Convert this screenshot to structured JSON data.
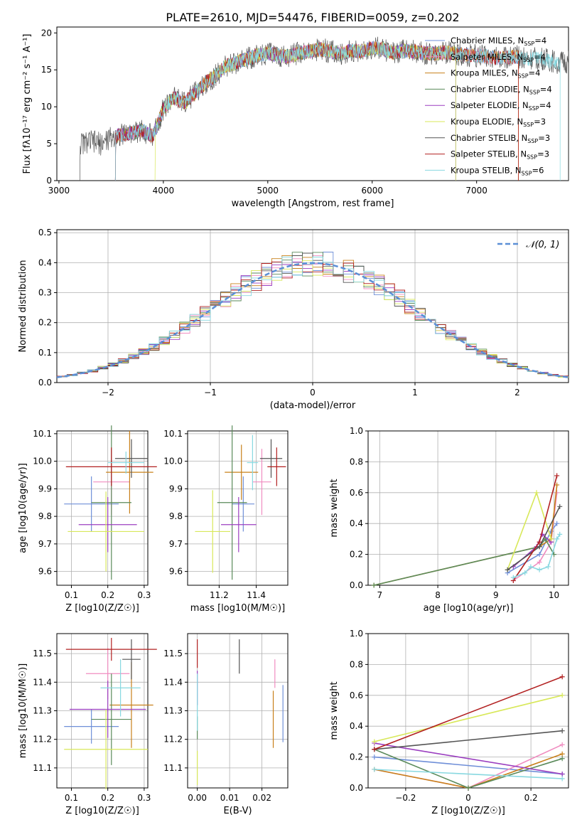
{
  "title": "PLATE=2610, MJD=54476, FIBERID=0059, z=0.202",
  "models": [
    {
      "label": "Chabrier MILES, N$_{SSP}$=4",
      "color": "#6f8fd8"
    },
    {
      "label": "Salpeter MILES, N$_{SSP}$=4",
      "color": "#f08cc0"
    },
    {
      "label": "Kroupa MILES, N$_{SSP}$=4",
      "color": "#c8801a"
    },
    {
      "label": "Chabrier ELODIE, N$_{SSP}$=4",
      "color": "#5a8a5a"
    },
    {
      "label": "Salpeter ELODIE, N$_{SSP}$=4",
      "color": "#9b3fc0"
    },
    {
      "label": "Kroupa ELODIE, N$_{SSP}$=3",
      "color": "#d8e85a"
    },
    {
      "label": "Chabrier STELIB, N$_{SSP}$=3",
      "color": "#555555"
    },
    {
      "label": "Salpeter STELIB, N$_{SSP}$=3",
      "color": "#b22020"
    },
    {
      "label": "Kroupa STELIB, N$_{SSP}$=6",
      "color": "#88d8e0"
    }
  ],
  "legend_labels": [
    "Chabrier MILES, N",
    "Salpeter MILES, N",
    "Kroupa MILES, N",
    "Chabrier ELODIE, N",
    "Salpeter ELODIE, N",
    "Kroupa ELODIE, N",
    "Chabrier STELIB, N",
    "Salpeter STELIB, N",
    "Kroupa STELIB, N"
  ],
  "legend_sub": "SSP",
  "legend_counts": [
    "=4",
    "=4",
    "=4",
    "=4",
    "=4",
    "=3",
    "=3",
    "=3",
    "=6"
  ],
  "chart_data": [
    {
      "type": "line",
      "id": "spectrum",
      "xlabel": "wavelength [Angstrom, rest frame]",
      "ylabel": "Flux [fλ10⁻¹⁷ erg cm⁻² s⁻¹ A⁻¹]",
      "xlim": [
        2980,
        7880
      ],
      "ylim": [
        0,
        20.8
      ],
      "xticks": [
        3000,
        4000,
        5000,
        6000,
        7000
      ],
      "yticks": [
        0,
        5,
        10,
        15,
        20
      ],
      "continuum_x": [
        3200,
        3300,
        3400,
        3500,
        3600,
        3700,
        3800,
        3900,
        4000,
        4100,
        4200,
        4300,
        4400,
        4500,
        4600,
        4700,
        4800,
        4900,
        5000,
        5100,
        5200,
        5300,
        5400,
        5500,
        5600,
        5700,
        5800,
        5900,
        6000,
        6100,
        6200,
        6300,
        6400,
        6500,
        6600,
        6700,
        6800,
        6900,
        7000,
        7100,
        7200,
        7300,
        7400,
        7500,
        7600,
        7700,
        7800
      ],
      "continuum_y": [
        5.0,
        5.3,
        5.0,
        5.8,
        6.2,
        6.5,
        6.8,
        6.0,
        9.8,
        11.2,
        10.5,
        11.8,
        13.2,
        14.2,
        15.5,
        16.0,
        16.5,
        17.0,
        17.2,
        17.0,
        16.8,
        17.3,
        17.5,
        17.8,
        17.5,
        17.2,
        17.6,
        17.5,
        18.0,
        17.8,
        17.3,
        17.6,
        17.5,
        17.3,
        17.2,
        17.4,
        17.2,
        17.0,
        16.9,
        16.8,
        16.6,
        16.7,
        16.8,
        16.5,
        16.6,
        16.2,
        16.0
      ],
      "ranges": [
        [
          3540,
          7400
        ],
        [
          3540,
          7400
        ],
        [
          3540,
          7400
        ],
        [
          3540,
          6800
        ],
        [
          3540,
          6800
        ],
        [
          3920,
          6800
        ],
        [
          3200,
          7880
        ],
        [
          3540,
          7400
        ],
        [
          3540,
          7800
        ]
      ]
    },
    {
      "type": "histogram",
      "id": "residuals",
      "xlabel": "(data-model)/error",
      "ylabel": "Normed distribution",
      "xlim": [
        -2.5,
        2.5
      ],
      "ylim": [
        0,
        0.51
      ],
      "xticks": [
        -2,
        -1,
        0,
        1,
        2
      ],
      "yticks": [
        0.0,
        0.1,
        0.2,
        0.3,
        0.4,
        0.5
      ],
      "bin_width": 0.1,
      "reference": {
        "name": "𝒩(0, 1)",
        "color": "#5b8fd6"
      }
    },
    {
      "type": "scatter",
      "id": "age_vs_Z",
      "xlabel": "Z [log10(Z/Z☉)]",
      "ylabel": "age [log10(age/yr)]",
      "xlim": [
        0.06,
        0.31
      ],
      "ylim": [
        9.55,
        10.11
      ],
      "xticks": [
        0.1,
        0.2,
        0.3
      ],
      "yticks": [
        9.6,
        9.7,
        9.8,
        9.9,
        10.0,
        10.1
      ],
      "points": [
        {
          "x": 0.155,
          "xerr": 0.075,
          "y": 9.845,
          "yerr": 0.1
        },
        {
          "x": 0.21,
          "xerr": 0.05,
          "y": 9.925,
          "yerr": 0.12
        },
        {
          "x": 0.26,
          "xerr": 0.065,
          "y": 9.96,
          "yerr": 0.15
        },
        {
          "x": 0.21,
          "xerr": 0.055,
          "y": 9.85,
          "yerr": 0.28
        },
        {
          "x": 0.2,
          "xerr": 0.08,
          "y": 9.77,
          "yerr": 0.1
        },
        {
          "x": 0.195,
          "xerr": 0.105,
          "y": 9.745,
          "yerr": 0.145
        },
        {
          "x": 0.265,
          "xerr": 0.045,
          "y": 10.01,
          "yerr": 0.07
        },
        {
          "x": 0.21,
          "xerr": 0.125,
          "y": 9.98,
          "yerr": 0.07
        },
        {
          "x": 0.25,
          "xerr": 0.05,
          "y": 9.995,
          "yerr": 0.04
        }
      ]
    },
    {
      "type": "scatter",
      "id": "age_vs_mass",
      "xlabel": "mass [log10(M/M☉)]",
      "ylabel": "",
      "xlim": [
        11.03,
        11.57
      ],
      "ylim": [
        9.55,
        10.11
      ],
      "xticks": [
        11.2,
        11.4
      ],
      "yticks": [
        9.6,
        9.7,
        9.8,
        9.9,
        10.0,
        10.1
      ],
      "points": [
        {
          "x": 11.33,
          "xerr": 0.06,
          "y": 9.845,
          "yerr": 0.1
        },
        {
          "x": 11.43,
          "xerr": 0.05,
          "y": 9.925,
          "yerr": 0.12
        },
        {
          "x": 11.32,
          "xerr": 0.09,
          "y": 9.96,
          "yerr": 0.1
        },
        {
          "x": 11.27,
          "xerr": 0.08,
          "y": 9.85,
          "yerr": 0.28
        },
        {
          "x": 11.305,
          "xerr": 0.095,
          "y": 9.77,
          "yerr": 0.1
        },
        {
          "x": 11.165,
          "xerr": 0.095,
          "y": 9.745,
          "yerr": 0.15
        },
        {
          "x": 11.48,
          "xerr": 0.06,
          "y": 10.01,
          "yerr": 0.07
        },
        {
          "x": 11.51,
          "xerr": 0.05,
          "y": 9.98,
          "yerr": 0.07
        },
        {
          "x": 11.38,
          "xerr": 0.03,
          "y": 9.995,
          "yerr": 0.1
        }
      ]
    },
    {
      "type": "line",
      "id": "mass_weight_vs_age",
      "xlabel": "age [log10(age/yr)]",
      "ylabel": "mass weight",
      "xlim": [
        6.8,
        10.25
      ],
      "ylim": [
        0,
        1.0
      ],
      "xticks": [
        7,
        8,
        9,
        10
      ],
      "yticks": [
        0.0,
        0.2,
        0.4,
        0.6,
        0.8,
        1.0
      ],
      "series": [
        {
          "x": [
            9.2,
            9.75,
            9.95,
            10.05
          ],
          "y": [
            0.08,
            0.2,
            0.35,
            0.4
          ]
        },
        {
          "x": [
            9.3,
            9.75,
            9.95,
            10.05
          ],
          "y": [
            0.03,
            0.15,
            0.28,
            0.6
          ]
        },
        {
          "x": [
            6.9,
            9.75,
            9.95,
            10.05
          ],
          "y": [
            0.0,
            0.25,
            0.3,
            0.65
          ]
        },
        {
          "x": [
            6.9,
            9.75,
            9.85,
            10.0
          ],
          "y": [
            0.0,
            0.25,
            0.3,
            0.2
          ]
        },
        {
          "x": [
            9.3,
            9.7,
            9.8,
            9.95
          ],
          "y": [
            0.12,
            0.25,
            0.33,
            0.28
          ]
        },
        {
          "x": [
            9.2,
            9.7,
            9.95
          ],
          "y": [
            0.1,
            0.6,
            0.3
          ]
        },
        {
          "x": [
            9.2,
            9.75,
            10.1
          ],
          "y": [
            0.1,
            0.25,
            0.51
          ]
        },
        {
          "x": [
            9.3,
            9.75,
            10.05
          ],
          "y": [
            0.03,
            0.28,
            0.71
          ]
        },
        {
          "x": [
            9.3,
            9.5,
            9.6,
            9.75,
            9.9,
            10.05,
            10.1
          ],
          "y": [
            0.05,
            0.08,
            0.12,
            0.1,
            0.12,
            0.3,
            0.33
          ]
        }
      ]
    },
    {
      "type": "scatter",
      "id": "mass_vs_Z",
      "xlabel": "Z [log10(Z/Z☉)]",
      "ylabel": "mass [log10(M/M☉)]",
      "xlim": [
        0.06,
        0.31
      ],
      "ylim": [
        11.03,
        11.57
      ],
      "xticks": [
        0.1,
        0.2,
        0.3
      ],
      "yticks": [
        11.1,
        11.2,
        11.3,
        11.4,
        11.5
      ],
      "points": [
        {
          "x": 0.155,
          "xerr": 0.075,
          "y": 11.245,
          "yerr": 0.06
        },
        {
          "x": 0.2,
          "xerr": 0.06,
          "y": 11.43,
          "yerr": 0.09
        },
        {
          "x": 0.265,
          "xerr": 0.06,
          "y": 11.32,
          "yerr": 0.15
        },
        {
          "x": 0.21,
          "xerr": 0.055,
          "y": 11.27,
          "yerr": 0.16
        },
        {
          "x": 0.2,
          "xerr": 0.105,
          "y": 11.305,
          "yerr": 0.1
        },
        {
          "x": 0.195,
          "xerr": 0.115,
          "y": 11.165,
          "yerr": 0.14
        },
        {
          "x": 0.265,
          "xerr": 0.025,
          "y": 11.48,
          "yerr": 0.07
        },
        {
          "x": 0.21,
          "xerr": 0.125,
          "y": 11.515,
          "yerr": 0.04
        },
        {
          "x": 0.235,
          "xerr": 0.055,
          "y": 11.38,
          "yerr": 0.1
        }
      ]
    },
    {
      "type": "errorbar",
      "id": "mass_vs_EBV",
      "xlabel": "E(B-V)",
      "ylabel": "",
      "xlim": [
        -0.003,
        0.028
      ],
      "ylim": [
        11.03,
        11.57
      ],
      "xticks": [
        0.0,
        0.01,
        0.02
      ],
      "yticks": [
        11.1,
        11.2,
        11.3,
        11.4,
        11.5
      ],
      "points": [
        {
          "x": 0.0265,
          "y": 11.29,
          "yerr": 0.1
        },
        {
          "x": 0.024,
          "y": 11.43,
          "yerr": 0.05
        },
        {
          "x": 0.0235,
          "y": 11.27,
          "yerr": 0.1
        },
        {
          "x": 0.0,
          "y": 11.24,
          "yerr": 0.04
        },
        {
          "x": 0.0,
          "y": 11.38,
          "yerr": 0.06
        },
        {
          "x": 0.0,
          "y": 11.1,
          "yerr": 0.06
        },
        {
          "x": 0.013,
          "y": 11.49,
          "yerr": 0.06
        },
        {
          "x": 0.0,
          "y": 11.5,
          "yerr": 0.05
        },
        {
          "x": 0.0,
          "y": 11.33,
          "yerr": 0.1
        }
      ]
    },
    {
      "type": "line",
      "id": "mass_weight_vs_Z",
      "xlabel": "Z [log10(Z/Z☉)]",
      "ylabel": "mass weight",
      "xlim": [
        -0.32,
        0.32
      ],
      "ylim": [
        0,
        1.0
      ],
      "xticks": [
        -0.2,
        0.0,
        0.2
      ],
      "yticks": [
        0.0,
        0.2,
        0.4,
        0.6,
        0.8,
        1.0
      ],
      "series": [
        {
          "x": [
            -0.3,
            0.3
          ],
          "y": [
            0.2,
            0.09
          ]
        },
        {
          "x": [
            -0.3,
            0.0,
            0.3
          ],
          "y": [
            0.12,
            0.0,
            0.28
          ]
        },
        {
          "x": [
            -0.3,
            0.0,
            0.3
          ],
          "y": [
            0.12,
            0.0,
            0.22
          ]
        },
        {
          "x": [
            -0.3,
            0.0,
            0.3
          ],
          "y": [
            0.25,
            0.0,
            0.19
          ]
        },
        {
          "x": [
            -0.3,
            0.3
          ],
          "y": [
            0.29,
            0.09
          ]
        },
        {
          "x": [
            -0.3,
            0.3
          ],
          "y": [
            0.3,
            0.6
          ]
        },
        {
          "x": [
            -0.3,
            0.3
          ],
          "y": [
            0.25,
            0.37
          ]
        },
        {
          "x": [
            -0.3,
            0.3
          ],
          "y": [
            0.25,
            0.72
          ]
        },
        {
          "x": [
            -0.3,
            0.3
          ],
          "y": [
            0.12,
            0.06
          ]
        }
      ]
    }
  ]
}
